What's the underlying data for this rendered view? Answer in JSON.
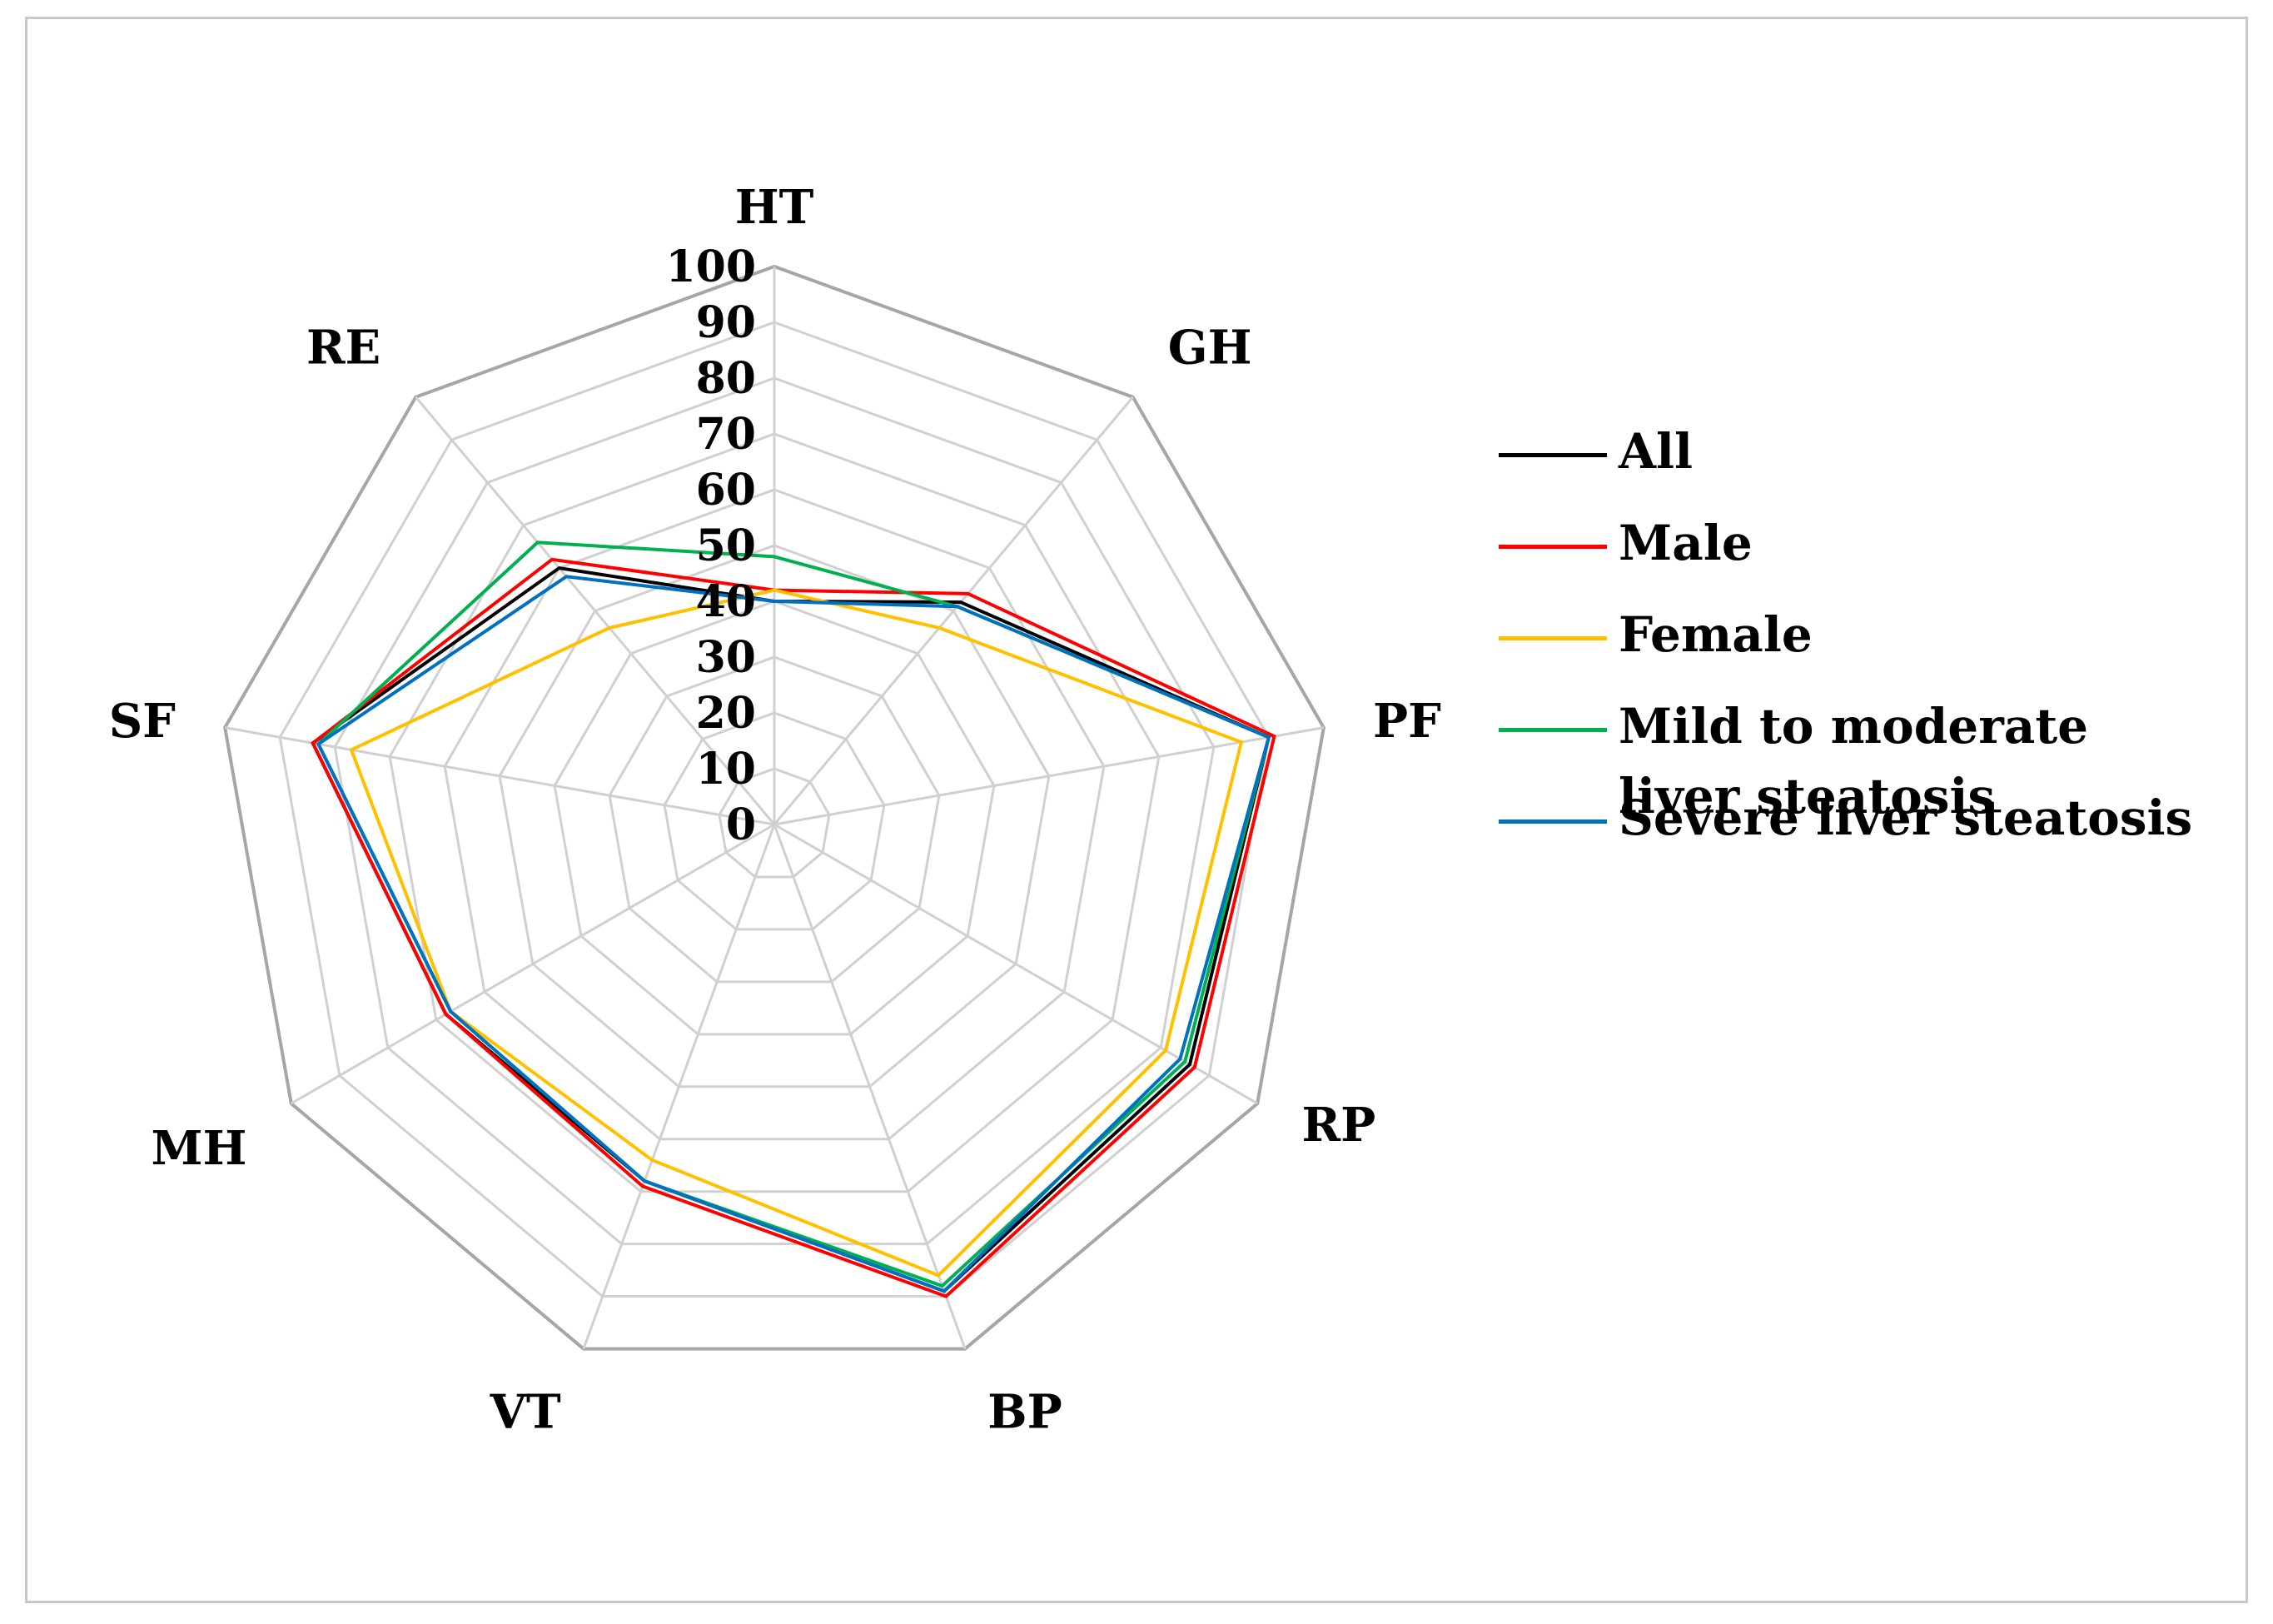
{
  "chart_data": {
    "type": "radar",
    "title": "",
    "axes": [
      "HT",
      "GH",
      "PF",
      "RP",
      "BP",
      "VT",
      "MH",
      "SF",
      "RE"
    ],
    "ticks": [
      "0",
      "10",
      "20",
      "30",
      "40",
      "50",
      "60",
      "70",
      "80",
      "90",
      "100"
    ],
    "range": [
      0,
      100
    ],
    "gridlines": true,
    "legend_position": "right",
    "series": [
      {
        "name": "All",
        "color": "#000000",
        "values": [
          40,
          52,
          90,
          86,
          89,
          68,
          68,
          84,
          60
        ]
      },
      {
        "name": "Male",
        "color": "#ff0000",
        "values": [
          42,
          54,
          91,
          87,
          90,
          69,
          68,
          84,
          62
        ]
      },
      {
        "name": "Female",
        "color": "#ffc000",
        "values": [
          42,
          46,
          85,
          81,
          86,
          64,
          67,
          77,
          46
        ]
      },
      {
        "name": "Mild to moderate liver steatosis",
        "color": "#00b050",
        "values": [
          48,
          51,
          90,
          85,
          88,
          68,
          67,
          83,
          66
        ]
      },
      {
        "name": "Severe liver steatosis",
        "color": "#0070c0",
        "values": [
          40,
          51,
          90,
          84,
          89,
          68,
          67,
          83,
          58
        ]
      }
    ]
  }
}
